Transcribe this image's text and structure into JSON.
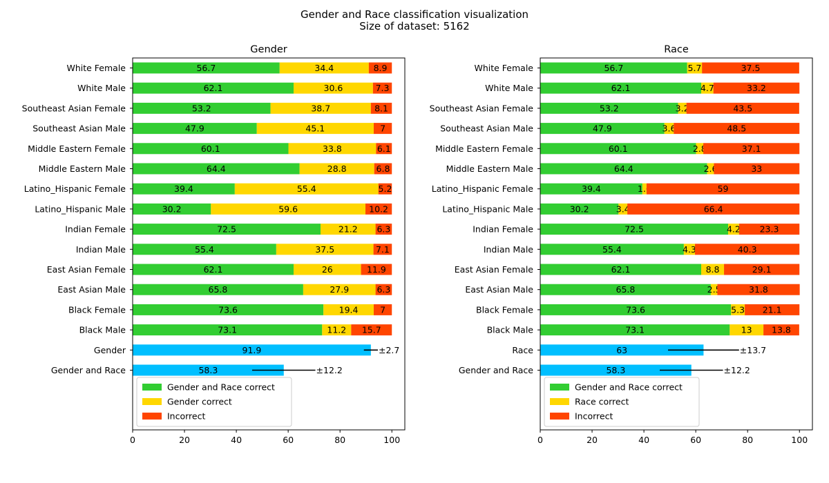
{
  "figure": {
    "title_line1": "Gender and Race classification visualization",
    "title_line2": "Size of dataset: 5162"
  },
  "colors": {
    "combined_correct": "#32cd32",
    "partial_correct": "#ffd700",
    "incorrect": "#ff4500",
    "summary": "#00bfff"
  },
  "chart_data": [
    {
      "type": "bar",
      "orientation": "horizontal",
      "stacked": true,
      "title": "Gender",
      "categories": [
        "White Female",
        "White Male",
        "Southeast Asian Female",
        "Southeast Asian Male",
        "Middle Eastern Female",
        "Middle Eastern Male",
        "Latino_Hispanic Female",
        "Latino_Hispanic Male",
        "Indian Female",
        "Indian Male",
        "East Asian Female",
        "East Asian Male",
        "Black Female",
        "Black Male"
      ],
      "series": [
        {
          "name": "Gender and Race correct",
          "values": [
            56.7,
            62.1,
            53.2,
            47.9,
            60.1,
            64.4,
            39.4,
            30.2,
            72.5,
            55.4,
            62.1,
            65.8,
            73.6,
            73.1
          ]
        },
        {
          "name": "Gender correct",
          "values": [
            34.4,
            30.6,
            38.7,
            45.1,
            33.8,
            28.8,
            55.4,
            59.6,
            21.2,
            37.5,
            26,
            27.9,
            19.4,
            11.2
          ]
        },
        {
          "name": "Incorrect",
          "values": [
            8.9,
            7.3,
            8.1,
            7,
            6.1,
            6.8,
            5.2,
            10.2,
            6.3,
            7.1,
            11.9,
            6.3,
            7,
            15.7
          ]
        }
      ],
      "summary": [
        {
          "label": "Gender",
          "value": 91.9,
          "error": 2.7,
          "error_label": "±2.7"
        },
        {
          "label": "Gender and Race",
          "value": 58.3,
          "error": 12.2,
          "error_label": "±12.2"
        }
      ],
      "xlim": [
        0,
        105
      ],
      "xticks": [
        0,
        20,
        40,
        60,
        80,
        100
      ],
      "legend": "lower-left"
    },
    {
      "type": "bar",
      "orientation": "horizontal",
      "stacked": true,
      "title": "Race",
      "categories": [
        "White Female",
        "White Male",
        "Southeast Asian Female",
        "Southeast Asian Male",
        "Middle Eastern Female",
        "Middle Eastern Male",
        "Latino_Hispanic Female",
        "Latino_Hispanic Male",
        "Indian Female",
        "Indian Male",
        "East Asian Female",
        "East Asian Male",
        "Black Female",
        "Black Male"
      ],
      "series": [
        {
          "name": "Gender and Race correct",
          "values": [
            56.7,
            62.1,
            53.2,
            47.9,
            60.1,
            64.4,
            39.4,
            30.2,
            72.5,
            55.4,
            62.1,
            65.8,
            73.6,
            73.1
          ]
        },
        {
          "name": "Race correct",
          "values": [
            5.7,
            4.7,
            3.2,
            3.6,
            2.8,
            2.6,
            1.6,
            3.4,
            4.2,
            4.3,
            8.8,
            2.5,
            5.3,
            13
          ]
        },
        {
          "name": "Incorrect",
          "values": [
            37.5,
            33.2,
            43.5,
            48.5,
            37.1,
            33,
            59,
            66.4,
            23.3,
            40.3,
            29.1,
            31.8,
            21.1,
            13.8
          ]
        }
      ],
      "summary": [
        {
          "label": "Race",
          "value": 63,
          "error": 13.7,
          "error_label": "±13.7"
        },
        {
          "label": "Gender and Race",
          "value": 58.3,
          "error": 12.2,
          "error_label": "±12.2"
        }
      ],
      "xlim": [
        0,
        105
      ],
      "xticks": [
        0,
        20,
        40,
        60,
        80,
        100
      ],
      "legend": "lower-left"
    }
  ]
}
